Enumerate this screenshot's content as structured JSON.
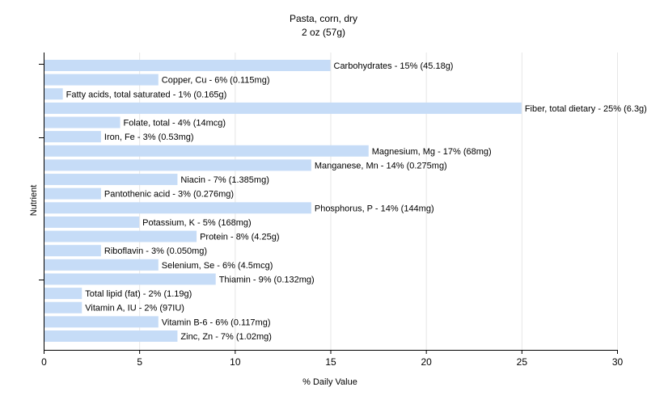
{
  "chart_data": {
    "type": "bar",
    "orientation": "horizontal",
    "title": "Pasta, corn, dry",
    "subtitle": "2 oz (57g)",
    "xlabel": "% Daily Value",
    "ylabel": "Nutrient",
    "xlim": [
      0,
      30
    ],
    "xticks": [
      0,
      5,
      10,
      15,
      20,
      25,
      30
    ],
    "grid": true,
    "bar_color": "#c6dcf7",
    "categories": [
      "Carbohydrates",
      "Copper, Cu",
      "Fatty acids, total saturated",
      "Fiber, total dietary",
      "Folate, total",
      "Iron, Fe",
      "Magnesium, Mg",
      "Manganese, Mn",
      "Niacin",
      "Pantothenic acid",
      "Phosphorus, P",
      "Potassium, K",
      "Protein",
      "Riboflavin",
      "Selenium, Se",
      "Thiamin",
      "Total lipid (fat)",
      "Vitamin A, IU",
      "Vitamin B-6",
      "Zinc, Zn"
    ],
    "values": [
      15,
      6,
      1,
      25,
      4,
      3,
      17,
      14,
      7,
      3,
      14,
      5,
      8,
      3,
      6,
      9,
      2,
      2,
      6,
      7
    ],
    "labels": [
      "Carbohydrates - 15% (45.18g)",
      "Copper, Cu - 6% (0.115mg)",
      "Fatty acids, total saturated - 1% (0.165g)",
      "Fiber, total dietary - 25% (6.3g)",
      "Folate, total - 4% (14mcg)",
      "Iron, Fe - 3% (0.53mg)",
      "Magnesium, Mg - 17% (68mg)",
      "Manganese, Mn - 14% (0.275mg)",
      "Niacin - 7% (1.385mg)",
      "Pantothenic acid - 3% (0.276mg)",
      "Phosphorus, P - 14% (144mg)",
      "Potassium, K - 5% (168mg)",
      "Protein - 8% (4.25g)",
      "Riboflavin - 3% (0.050mg)",
      "Selenium, Se - 6% (4.5mcg)",
      "Thiamin - 9% (0.132mg)",
      "Total lipid (fat) - 2% (1.19g)",
      "Vitamin A, IU - 2% (97IU)",
      "Vitamin B-6 - 6% (0.117mg)",
      "Zinc, Zn - 7% (1.02mg)"
    ]
  }
}
